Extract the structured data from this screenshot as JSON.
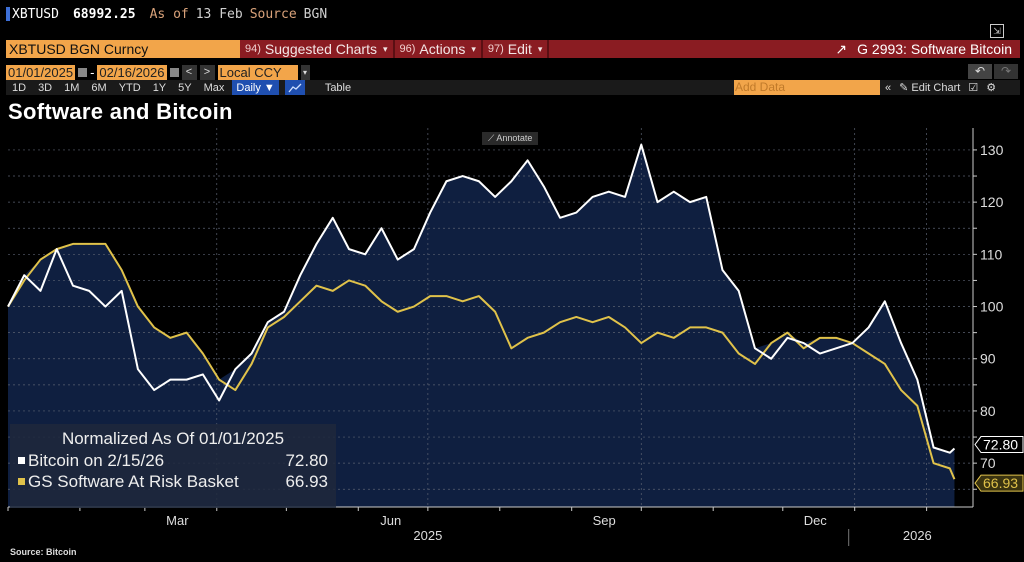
{
  "quote": {
    "symbol": "XBTUSD",
    "price": "68992.25",
    "as_of_label": "As of",
    "as_of_date": "13 Feb",
    "source_label": "Source",
    "source": "BGN"
  },
  "menubar": {
    "ticker": "XBTUSD BGN Curncy",
    "items": [
      {
        "num": "94)",
        "label": "Suggested Charts"
      },
      {
        "num": "96)",
        "label": "Actions"
      },
      {
        "num": "97)",
        "label": "Edit"
      }
    ],
    "chart_title": "G 2993: Software Bitcoin"
  },
  "dates": {
    "start": "01/01/2025",
    "sep": "-",
    "end": "02/16/2026",
    "prev": "<",
    "next": ">",
    "currency": "Local CCY"
  },
  "toolbar": {
    "periods": [
      "1D",
      "3D",
      "1M",
      "6M",
      "YTD",
      "1Y",
      "5Y",
      "Max"
    ],
    "frequency": "Daily ▼",
    "table": "Table",
    "add_data_placeholder": "Add Data",
    "collapse": "«",
    "edit_chart": "Edit Chart",
    "undo": "↶",
    "redo": "↷"
  },
  "annotate": "Annotate",
  "colors": {
    "bitcoin": "#ffffff",
    "software": "#e0c24a",
    "area": "#0f1f40",
    "panel_red": "#8a1c22",
    "field_orange": "#f2a54a"
  },
  "chart_data": {
    "type": "line",
    "title": "Software and Bitcoin",
    "legend": {
      "header": "Normalized As Of 01/01/2025",
      "placement": "bottom-left"
    },
    "x": [
      "2025-01-01",
      "2025-01-08",
      "2025-01-15",
      "2025-01-22",
      "2025-01-29",
      "2025-02-05",
      "2025-02-12",
      "2025-02-19",
      "2025-02-26",
      "2025-03-05",
      "2025-03-12",
      "2025-03-19",
      "2025-03-26",
      "2025-04-02",
      "2025-04-09",
      "2025-04-16",
      "2025-04-23",
      "2025-04-30",
      "2025-05-07",
      "2025-05-14",
      "2025-05-21",
      "2025-05-28",
      "2025-06-04",
      "2025-06-11",
      "2025-06-18",
      "2025-06-25",
      "2025-07-02",
      "2025-07-09",
      "2025-07-16",
      "2025-07-23",
      "2025-07-30",
      "2025-08-06",
      "2025-08-13",
      "2025-08-20",
      "2025-08-27",
      "2025-09-03",
      "2025-09-10",
      "2025-09-17",
      "2025-09-24",
      "2025-10-01",
      "2025-10-08",
      "2025-10-15",
      "2025-10-22",
      "2025-10-29",
      "2025-11-05",
      "2025-11-12",
      "2025-11-19",
      "2025-11-26",
      "2025-12-03",
      "2025-12-10",
      "2025-12-17",
      "2025-12-24",
      "2025-12-31",
      "2026-01-07",
      "2026-01-14",
      "2026-01-21",
      "2026-01-28",
      "2026-02-04",
      "2026-02-11",
      "2026-02-13"
    ],
    "series": [
      {
        "name": "Bitcoin on 2/15/26",
        "last": "72.80",
        "color": "#ffffff",
        "values": [
          100,
          106,
          103,
          111,
          104,
          103,
          100,
          103,
          88,
          84,
          86,
          86,
          87,
          82,
          88,
          91,
          97,
          99,
          106,
          112,
          117,
          111,
          110,
          115,
          109,
          111,
          118,
          124,
          125,
          124,
          121,
          124,
          128,
          123,
          117,
          118,
          121,
          122,
          121,
          131,
          120,
          122,
          120,
          121,
          107,
          103,
          92,
          90,
          94,
          93,
          91,
          92,
          93,
          96,
          101,
          93,
          86,
          73,
          72,
          72.8
        ]
      },
      {
        "name": "GS Software At Risk Basket",
        "last": "66.93",
        "color": "#e0c24a",
        "values": [
          100,
          105,
          109,
          111,
          112,
          112,
          112,
          107,
          100,
          96,
          94,
          95,
          91,
          86,
          84,
          89,
          96,
          98,
          101,
          104,
          103,
          105,
          104,
          101,
          99,
          100,
          102,
          102,
          101,
          102,
          99,
          92,
          94,
          95,
          97,
          98,
          97,
          98,
          96,
          93,
          95,
          94,
          96,
          96,
          95,
          91,
          89,
          93,
          95,
          92,
          94,
          94,
          93,
          91,
          89,
          84,
          81,
          70,
          69,
          66.93
        ]
      }
    ],
    "yticks": [
      70,
      80,
      90,
      100,
      110,
      120,
      130
    ],
    "ylim": [
      61.6,
      134.2
    ],
    "xlim": [
      "2025-01-01",
      "2026-02-21"
    ],
    "month_labels": [
      {
        "label": "Mar",
        "date": "2025-03-15"
      },
      {
        "label": "Jun",
        "date": "2025-06-15"
      },
      {
        "label": "Sep",
        "date": "2025-09-15"
      },
      {
        "label": "Dec",
        "date": "2025-12-15"
      }
    ],
    "year_labels": [
      {
        "label": "2025",
        "date": "2025-07-01"
      },
      {
        "label": "2026",
        "date": "2026-01-28"
      }
    ],
    "grid": true,
    "y_axis_side": "right"
  },
  "source_note": "Source: Bitcoin"
}
